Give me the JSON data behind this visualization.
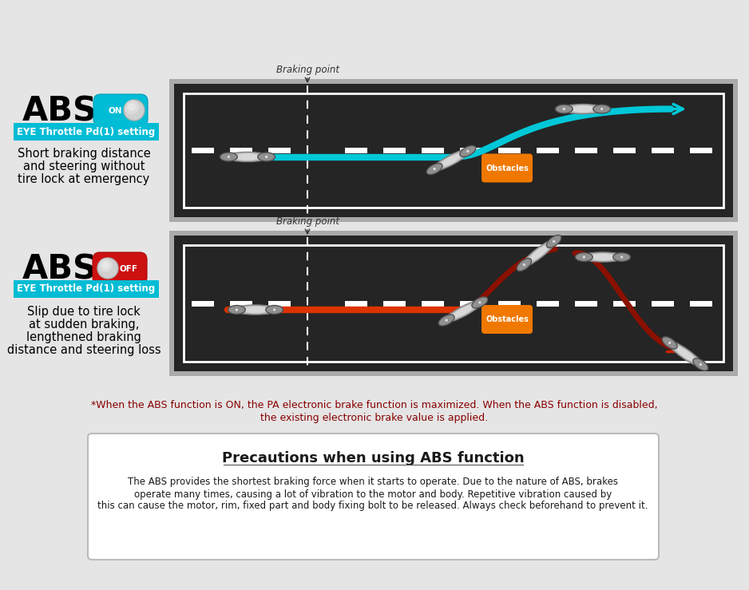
{
  "bg_color": "#e5e5e5",
  "road_color": "#252525",
  "road_border_color": "#999999",
  "braking_label": "Braking point",
  "label_text1": "EYE Throttle Pd(1) setting",
  "desc1_line1": "Short braking distance",
  "desc1_line2": "and steering without",
  "desc1_line3": "tire lock at emergency",
  "desc2_line1": "Slip due to tire lock",
  "desc2_line2": "at sudden braking,",
  "desc2_line3": "lengthened braking",
  "desc2_line4": "distance and steering loss",
  "note_line1": "*When the ABS function is ON, the PA electronic brake function is maximized. When the ABS function is disabled,",
  "note_line2": "the existing electronic brake value is applied.",
  "precaution_title": "Precautions when using ABS function",
  "precaution_body1": "The ABS provides the shortest braking force when it starts to operate. Due to the nature of ABS, brakes",
  "precaution_body2": "operate many times, causing a lot of vibration to the motor and body. Repetitive vibration caused by",
  "precaution_body3": "this can cause the motor, rim, fixed part and body fixing bolt to be released. Always check beforehand to prevent it.",
  "obstacles_text": "Obstacles",
  "cyan": "#00c8d8",
  "darkred": "#8b1000",
  "red_path": "#cc2200",
  "orange": "#f07800"
}
